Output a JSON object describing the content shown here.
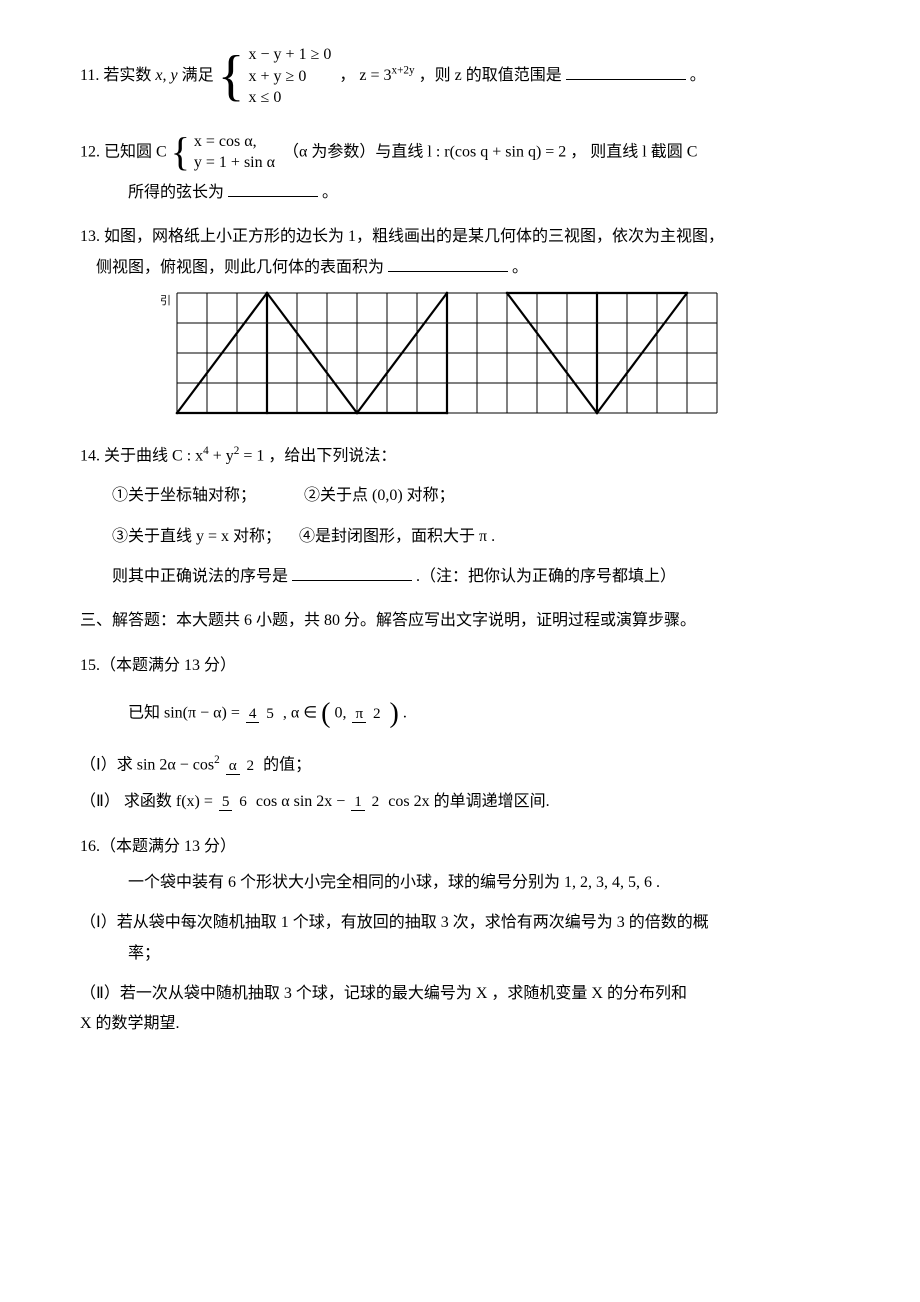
{
  "q11": {
    "prefix": "11. 若实数",
    "vars": " x, y ",
    "mid1": "满足",
    "sys_l1": "x − y + 1 ≥ 0",
    "sys_l2": "x + y ≥ 0",
    "sys_l3": "x ≤ 0",
    "mid2": "，",
    "z_expr": "z = 3",
    "z_exp": "x+2y",
    "mid3": "，则 ",
    "tail": " z 的取值范围是",
    "period": "。"
  },
  "q12": {
    "prefix": "12.  已知圆 C",
    "sys_l1": "x = cos α,",
    "sys_l2": "y = 1 + sin α",
    "mid": "（α 为参数）与直线 l : r(cos q + sin q) = 2 ，  则直线 l 截圆 C",
    "line2": "所得的弦长为",
    "period": "。"
  },
  "q13": {
    "line1": "13.  如图，网格纸上小正方形的边长为 1，粗线画出的是某几何体的三视图，依次为主视图，",
    "line2": "侧视图，俯视图，则此几何体的表面积为",
    "period": "。",
    "grid": {
      "cols": 18,
      "rows": 4,
      "cell": 30,
      "stroke": "#000000",
      "thin": 1,
      "thick": 2.2,
      "thick_paths": [
        [
          [
            0,
            4
          ],
          [
            3,
            0
          ],
          [
            6,
            4
          ],
          [
            0,
            4
          ]
        ],
        [
          [
            3,
            0
          ],
          [
            3,
            4
          ]
        ],
        [
          [
            6,
            4
          ],
          [
            9,
            0
          ],
          [
            9,
            4
          ],
          [
            6,
            4
          ]
        ],
        [
          [
            11,
            0
          ],
          [
            14,
            4
          ],
          [
            17,
            0
          ],
          [
            11,
            0
          ]
        ],
        [
          [
            14,
            4
          ],
          [
            14,
            0
          ]
        ]
      ]
    },
    "axis_label": "引"
  },
  "q14": {
    "line1_a": "14.  关于曲线 ",
    "curve": "C : x",
    "exp1": "4",
    "mid1": " + y",
    "exp2": "2",
    "mid2": " = 1",
    "line1_b": "，给出下列说法：",
    "opt1": "①关于坐标轴对称；",
    "opt2": "②关于点 (0,0) 对称；",
    "opt3": "③关于直线 y = x 对称；",
    "opt4": "④是封闭图形，面积大于 π .",
    "line3": "则其中正确说法的序号是",
    "note": ".（注：把你认为正确的序号都填上）"
  },
  "sec3": "三、解答题：本大题共 6 小题，共 80 分。解答应写出文字说明，证明过程或演算步骤。",
  "q15": {
    "head": "15.（本题满分 13 分）",
    "given_a": "已知 sin(π − α) = ",
    "frac1_num": "4",
    "frac1_den": "5",
    "given_b": ", α ∈ ",
    "paren_l": "(",
    "paren_in_a": "0, ",
    "frac2_num": "π",
    "frac2_den": "2",
    "paren_r": ")",
    "given_c": ".",
    "p1_a": "（Ⅰ）求 sin 2α − cos",
    "p1_exp": "2",
    "p1_b": " ",
    "frac3_num": "α",
    "frac3_den": "2",
    "p1_c": " 的值；",
    "p2_a": "（Ⅱ） 求函数 f(x) = ",
    "frac4_num": "5",
    "frac4_den": "6",
    "p2_b": " cos α sin 2x − ",
    "frac5_num": "1",
    "frac5_den": "2",
    "p2_c": " cos 2x 的单调递增区间."
  },
  "q16": {
    "head": "16.（本题满分 13 分）",
    "line1": "一个袋中装有 6 个形状大小完全相同的小球，球的编号分别为 1, 2, 3, 4, 5, 6 .",
    "p1_a": "（Ⅰ）若从袋中每次随机抽取 1 个球，有放回的抽取 3 次，求恰有两次编号为 3 的倍数的概",
    "p1_b": "率；",
    "p2": "（Ⅱ）若一次从袋中随机抽取 3 个球，记球的最大编号为 X ，求随机变量 X 的分布列和",
    "p2b": "X 的数学期望."
  }
}
